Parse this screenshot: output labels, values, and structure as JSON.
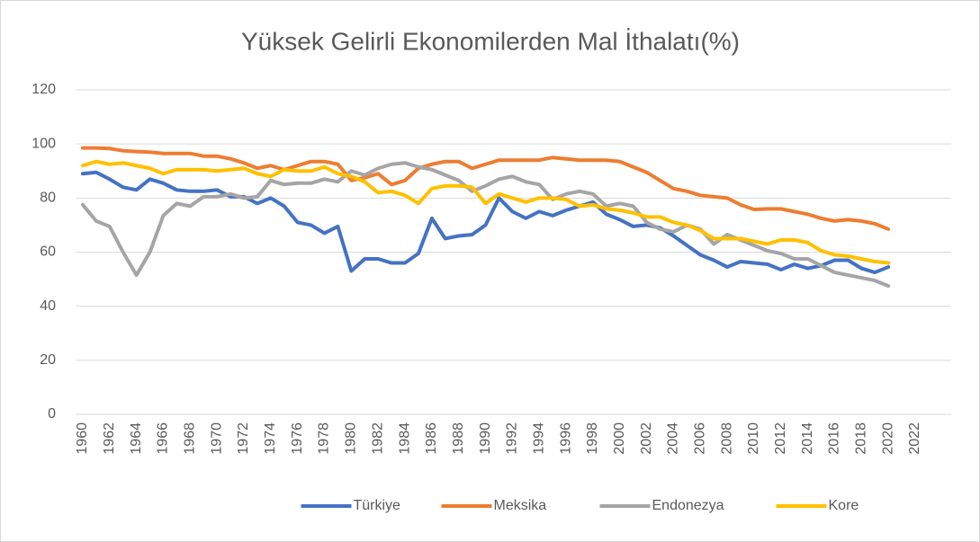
{
  "chart_data": {
    "type": "line",
    "title": "Yüksek Gelirli Ekonomilerden Mal İthalatı(%)",
    "categories": [
      "1960",
      null,
      "1962",
      null,
      "1964",
      null,
      "1966",
      null,
      "1968",
      null,
      "1970",
      null,
      "1972",
      null,
      "1974",
      null,
      "1976",
      null,
      "1978",
      null,
      "1980",
      null,
      "1982",
      null,
      "1984",
      null,
      "1986",
      null,
      "1988",
      null,
      "1990",
      null,
      "1992",
      null,
      "1994",
      null,
      "1996",
      null,
      "1998",
      null,
      "2000",
      null,
      "2002",
      null,
      "2004",
      null,
      "2006",
      null,
      "2008",
      null,
      "2010",
      null,
      "2012",
      null,
      "2014",
      null,
      "2016",
      null,
      "2018",
      null,
      "2020",
      null,
      "2022",
      null
    ],
    "series": [
      {
        "name": "Türkiye",
        "color": "#4472c4",
        "values": [
          89,
          89.5,
          87,
          84,
          83,
          87,
          85.5,
          83,
          82.5,
          82.5,
          83,
          80.5,
          80.5,
          78,
          80,
          77,
          71,
          70,
          67,
          69.5,
          53,
          57.5,
          57.5,
          56,
          56,
          59.5,
          72.5,
          65,
          66,
          66.5,
          70,
          80,
          75,
          72.5,
          75,
          73.5,
          75.5,
          77,
          78.5,
          74,
          72,
          69.5,
          70,
          69,
          66,
          62.5,
          59,
          57,
          54.5,
          56.5,
          56,
          55.5,
          53.5,
          55.5,
          54,
          55,
          57,
          57,
          54,
          52.5,
          54.5,
          null,
          null,
          null
        ]
      },
      {
        "name": "Meksika",
        "color": "#ed7d31",
        "values": [
          98.5,
          98.5,
          98.3,
          97.5,
          97.2,
          97,
          96.5,
          96.5,
          96.5,
          95.5,
          95.5,
          94.5,
          93,
          91,
          92,
          90.5,
          92,
          93.5,
          93.5,
          92.5,
          86.5,
          87.5,
          89,
          85,
          86.5,
          91,
          92.5,
          93.5,
          93.5,
          91,
          92.5,
          94,
          94,
          94,
          94,
          95,
          94.5,
          94,
          94,
          94,
          93.5,
          91.5,
          89.5,
          86.5,
          83.5,
          82.5,
          81,
          80.5,
          80,
          77.5,
          75.8,
          76,
          76,
          75,
          74,
          72.5,
          71.5,
          72,
          71.5,
          70.5,
          68.5,
          null,
          null,
          null
        ]
      },
      {
        "name": "Endonezya",
        "color": "#a5a5a5",
        "values": [
          77.5,
          71.5,
          69.5,
          60,
          51.5,
          60,
          73.5,
          78,
          77,
          80.5,
          80.5,
          81.5,
          80,
          80.5,
          86.5,
          85,
          85.5,
          85.5,
          87,
          86,
          90,
          88.5,
          91,
          92.5,
          93,
          91.5,
          90.5,
          88.5,
          86.5,
          82.5,
          84.5,
          87,
          88,
          86,
          85,
          79.5,
          81.5,
          82.5,
          81.5,
          77,
          78,
          77,
          71,
          68.5,
          67.5,
          70,
          68.5,
          63,
          66.5,
          64.5,
          62.5,
          60.5,
          59.5,
          57.5,
          57.5,
          55,
          52.5,
          51.5,
          50.5,
          49.5,
          47.5,
          null,
          null,
          null
        ]
      },
      {
        "name": "Kore",
        "color": "#ffc000",
        "values": [
          92,
          93.5,
          92.5,
          93,
          92,
          91,
          89,
          90.5,
          90.5,
          90.5,
          90,
          90.5,
          91,
          89,
          88,
          90.5,
          90,
          90,
          91.5,
          89,
          88,
          86,
          82,
          82.5,
          81,
          78,
          83.5,
          84.5,
          84.5,
          84,
          78,
          81.5,
          80,
          78.5,
          80,
          80,
          79.5,
          77,
          77.5,
          76,
          75.5,
          74.5,
          73,
          73,
          71,
          70,
          68,
          65,
          65,
          65,
          64,
          63,
          64.5,
          64.5,
          63.5,
          60.5,
          59,
          58.5,
          57.5,
          56.5,
          56,
          null,
          null,
          null
        ]
      }
    ],
    "ylim": [
      0,
      120
    ],
    "yticks": [
      0,
      20,
      40,
      60,
      80,
      100,
      120
    ],
    "grid": true,
    "legend": "bottom"
  }
}
